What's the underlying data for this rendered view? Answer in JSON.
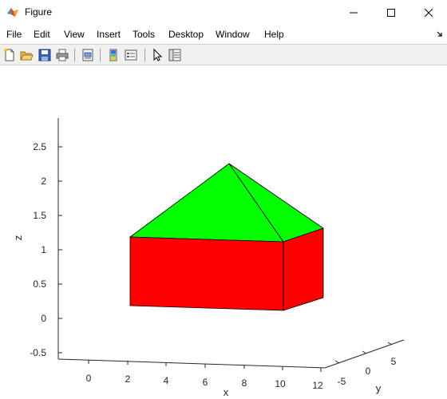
{
  "window": {
    "title": "Figure",
    "controls": [
      "minimize",
      "maximize",
      "close"
    ]
  },
  "menu": {
    "items": [
      "File",
      "Edit",
      "View",
      "Insert",
      "Tools",
      "Desktop",
      "Window",
      "Help"
    ]
  },
  "toolbar": {
    "buttons": [
      "new-figure-icon",
      "open-file-icon",
      "save-icon",
      "print-icon",
      "print-preview-icon",
      "colorbar-icon",
      "legend-icon",
      "pointer-icon",
      "property-inspector-icon"
    ]
  },
  "chart_data": {
    "type": "3d-surface",
    "xlabel": "x",
    "ylabel": "y",
    "zlabel": "z",
    "x_ticks": [
      "0",
      "2",
      "4",
      "6",
      "8",
      "10",
      "12"
    ],
    "y_ticks": [
      "-5",
      "0",
      "5"
    ],
    "z_ticks": [
      "-0.5",
      "0",
      "0.5",
      "1",
      "1.5",
      "2",
      "2.5"
    ],
    "xlim": [
      -1,
      12
    ],
    "ylim": [
      -6,
      7
    ],
    "zlim": [
      -0.6,
      2.9
    ],
    "objects": [
      {
        "name": "box",
        "color": "#ff0000",
        "description_faces": "walls",
        "z_range": [
          0,
          1
        ]
      },
      {
        "name": "roof",
        "color": "#00ff00",
        "apex_z": 2
      }
    ]
  }
}
